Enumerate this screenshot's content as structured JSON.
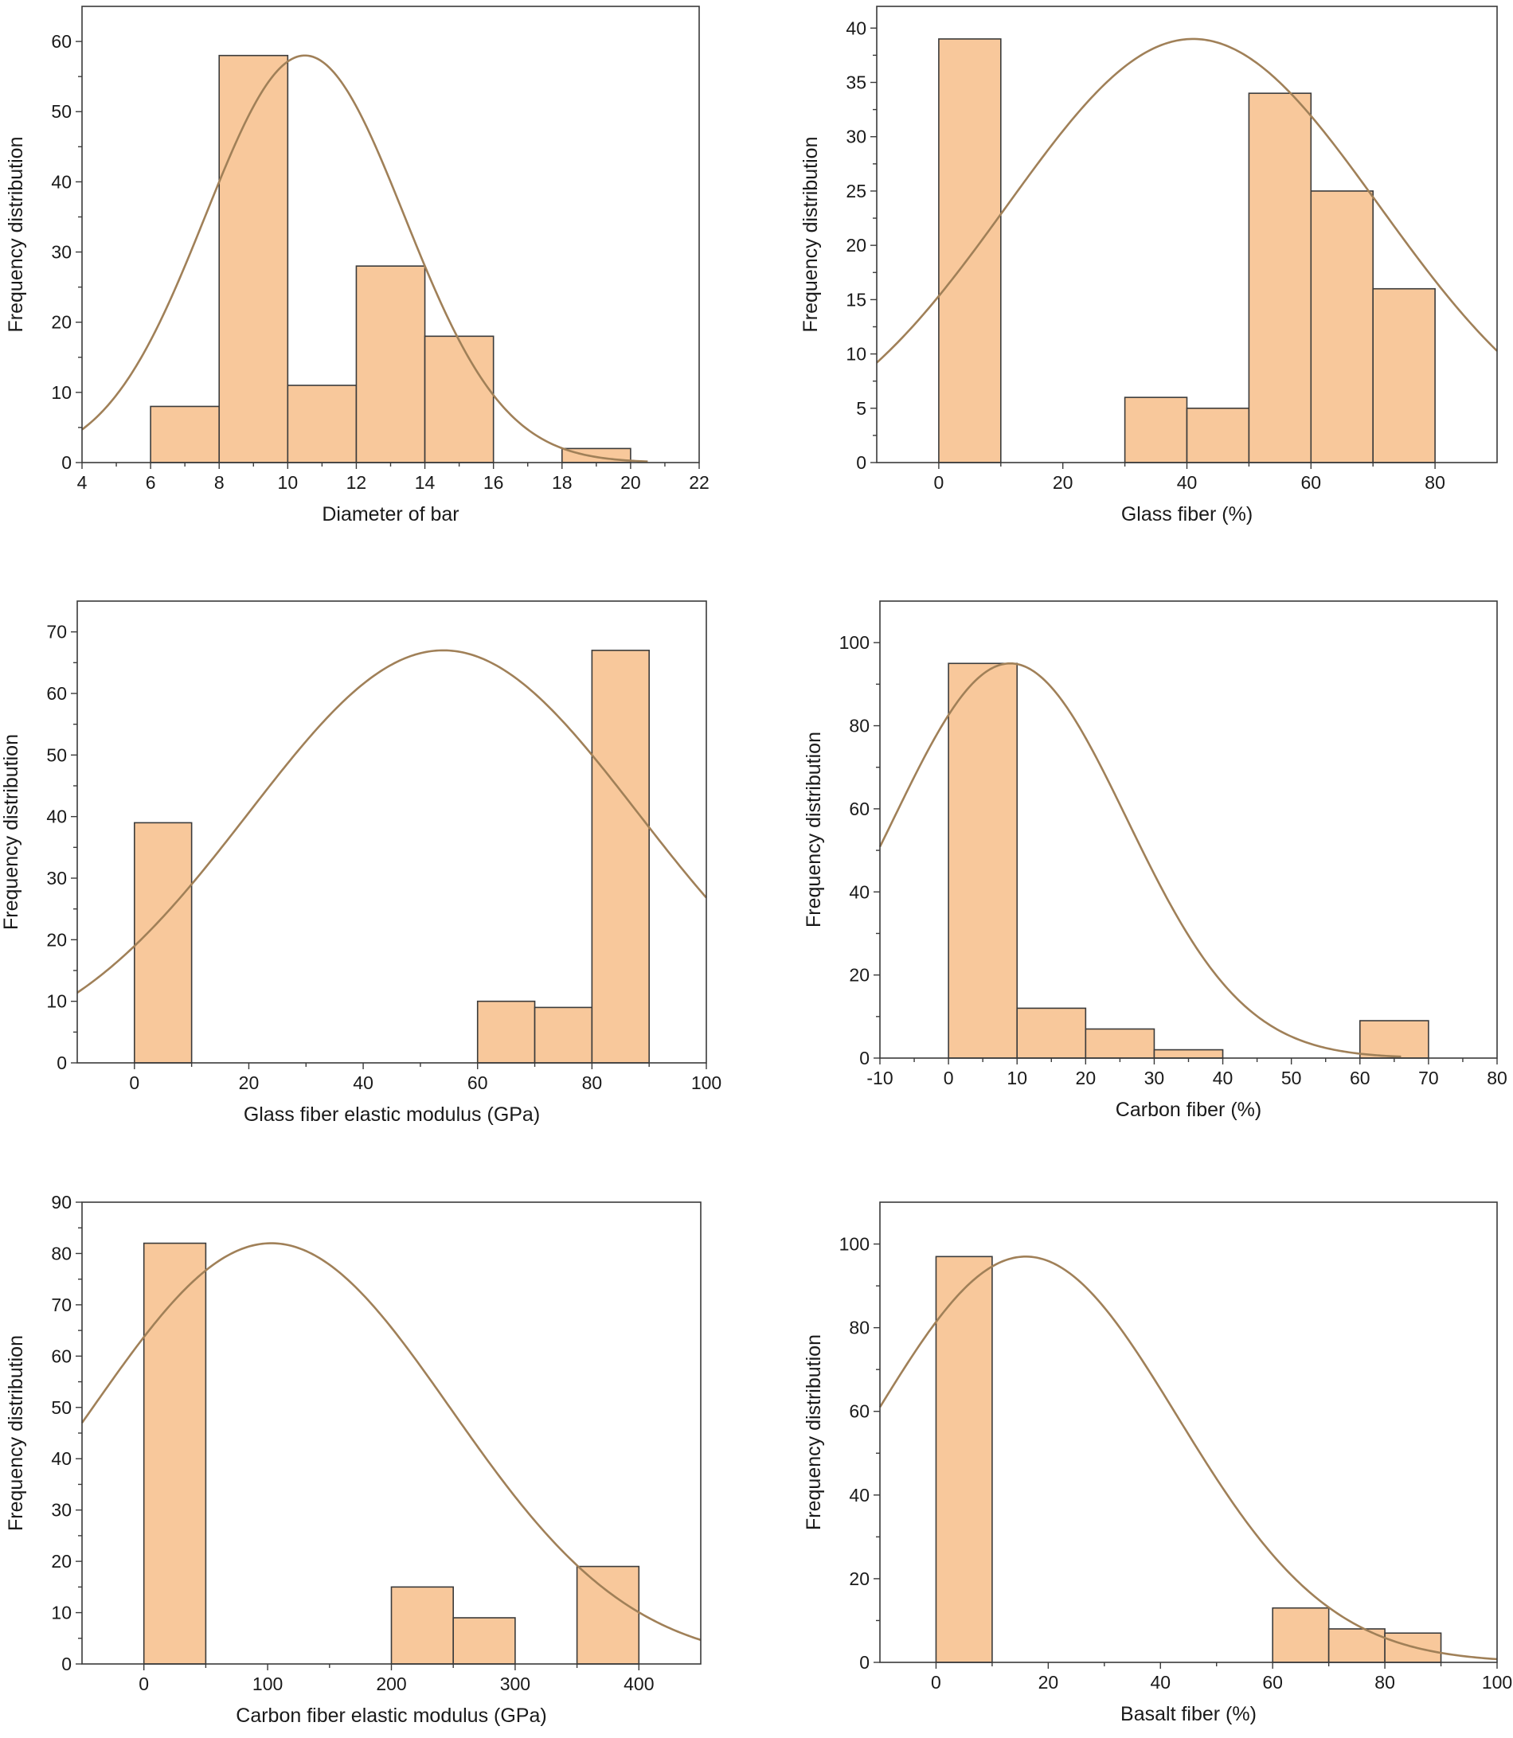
{
  "colors": {
    "bar_fill": "#f8c89b",
    "bar_stroke": "#3b3b3b",
    "curve": "#a08058",
    "frame": "#3a3a3a"
  },
  "chart_data": [
    {
      "type": "bar",
      "xlabel": "Diameter of bar",
      "ylabel": "Frequency distribution",
      "xlim": [
        4,
        22
      ],
      "ylim": [
        0,
        65
      ],
      "xticks": [
        4,
        6,
        8,
        10,
        12,
        14,
        16,
        18,
        20,
        22
      ],
      "yticks": [
        0,
        10,
        20,
        30,
        40,
        50,
        60
      ],
      "bins": [
        [
          6,
          8
        ],
        [
          8,
          10
        ],
        [
          10,
          12
        ],
        [
          12,
          14
        ],
        [
          14,
          16
        ],
        [
          18,
          20
        ]
      ],
      "values": [
        8,
        58,
        11,
        28,
        18,
        2
      ],
      "curve": {
        "type": "normal",
        "mean": 10.5,
        "sd": 2.9,
        "peak": 58,
        "x_range": [
          4,
          20.5
        ]
      },
      "grid": false
    },
    {
      "type": "bar",
      "xlabel": "Glass fiber (%)",
      "ylabel": "Frequency distribution",
      "xlim": [
        -10,
        90
      ],
      "ylim": [
        0,
        42
      ],
      "xticks": [
        0,
        20,
        40,
        60,
        80
      ],
      "yticks": [
        0,
        5,
        10,
        15,
        20,
        25,
        30,
        35,
        40
      ],
      "bins": [
        [
          0,
          10
        ],
        [
          30,
          40
        ],
        [
          40,
          50
        ],
        [
          50,
          60
        ],
        [
          60,
          70
        ],
        [
          70,
          80
        ]
      ],
      "values": [
        39,
        6,
        5,
        34,
        25,
        16
      ],
      "curve": {
        "type": "normal",
        "mean": 41,
        "sd": 30,
        "peak": 39,
        "x_range": [
          -10,
          90
        ]
      },
      "grid": false
    },
    {
      "type": "bar",
      "xlabel": "Glass fiber elastic modulus (GPa)",
      "ylabel": "Frequency distribution",
      "xlim": [
        -10,
        100
      ],
      "ylim": [
        0,
        75
      ],
      "xticks": [
        0,
        20,
        40,
        60,
        80,
        100
      ],
      "yticks": [
        0,
        10,
        20,
        30,
        40,
        50,
        60,
        70
      ],
      "bins": [
        [
          0,
          10
        ],
        [
          60,
          70
        ],
        [
          70,
          80
        ],
        [
          80,
          90
        ]
      ],
      "values": [
        39,
        10,
        9,
        67
      ],
      "curve": {
        "type": "normal",
        "mean": 54,
        "sd": 34,
        "peak": 67,
        "x_range": [
          -10,
          100
        ]
      },
      "grid": false
    },
    {
      "type": "bar",
      "xlabel": "Carbon fiber (%)",
      "ylabel": "Frequency distribution",
      "xlim": [
        -10,
        80
      ],
      "ylim": [
        0,
        110
      ],
      "xticks": [
        -10,
        0,
        10,
        20,
        30,
        40,
        50,
        60,
        70,
        80
      ],
      "yticks": [
        0,
        20,
        40,
        60,
        80,
        100
      ],
      "bins": [
        [
          0,
          10
        ],
        [
          10,
          20
        ],
        [
          20,
          30
        ],
        [
          30,
          40
        ],
        [
          60,
          70
        ]
      ],
      "values": [
        95,
        12,
        7,
        2,
        9
      ],
      "curve": {
        "type": "normal",
        "mean": 9,
        "sd": 17,
        "peak": 95,
        "x_range": [
          -10,
          66
        ]
      },
      "grid": false
    },
    {
      "type": "bar",
      "xlabel": "Carbon fiber elastic modulus (GPa)",
      "ylabel": "Frequency distribution",
      "xlim": [
        -50,
        450
      ],
      "ylim": [
        0,
        90
      ],
      "xticks": [
        0,
        100,
        200,
        300,
        400
      ],
      "yticks": [
        0,
        10,
        20,
        30,
        40,
        50,
        60,
        70,
        80,
        90
      ],
      "bins": [
        [
          0,
          50
        ],
        [
          200,
          250
        ],
        [
          250,
          300
        ],
        [
          350,
          400
        ]
      ],
      "values": [
        82,
        15,
        9,
        19
      ],
      "curve": {
        "type": "normal",
        "mean": 103,
        "sd": 145,
        "peak": 82,
        "x_range": [
          -50,
          450
        ]
      },
      "grid": false
    },
    {
      "type": "bar",
      "xlabel": "Basalt fiber (%)",
      "ylabel": "Frequency distribution",
      "xlim": [
        -10,
        100
      ],
      "ylim": [
        0,
        110
      ],
      "xticks": [
        0,
        20,
        40,
        60,
        80,
        100
      ],
      "yticks": [
        0,
        20,
        40,
        60,
        80,
        100
      ],
      "bins": [
        [
          0,
          10
        ],
        [
          60,
          70
        ],
        [
          70,
          80
        ],
        [
          80,
          90
        ]
      ],
      "values": [
        97,
        13,
        8,
        7
      ],
      "curve": {
        "type": "normal",
        "mean": 16,
        "sd": 27,
        "peak": 97,
        "x_range": [
          -10,
          100
        ]
      },
      "grid": false
    }
  ]
}
